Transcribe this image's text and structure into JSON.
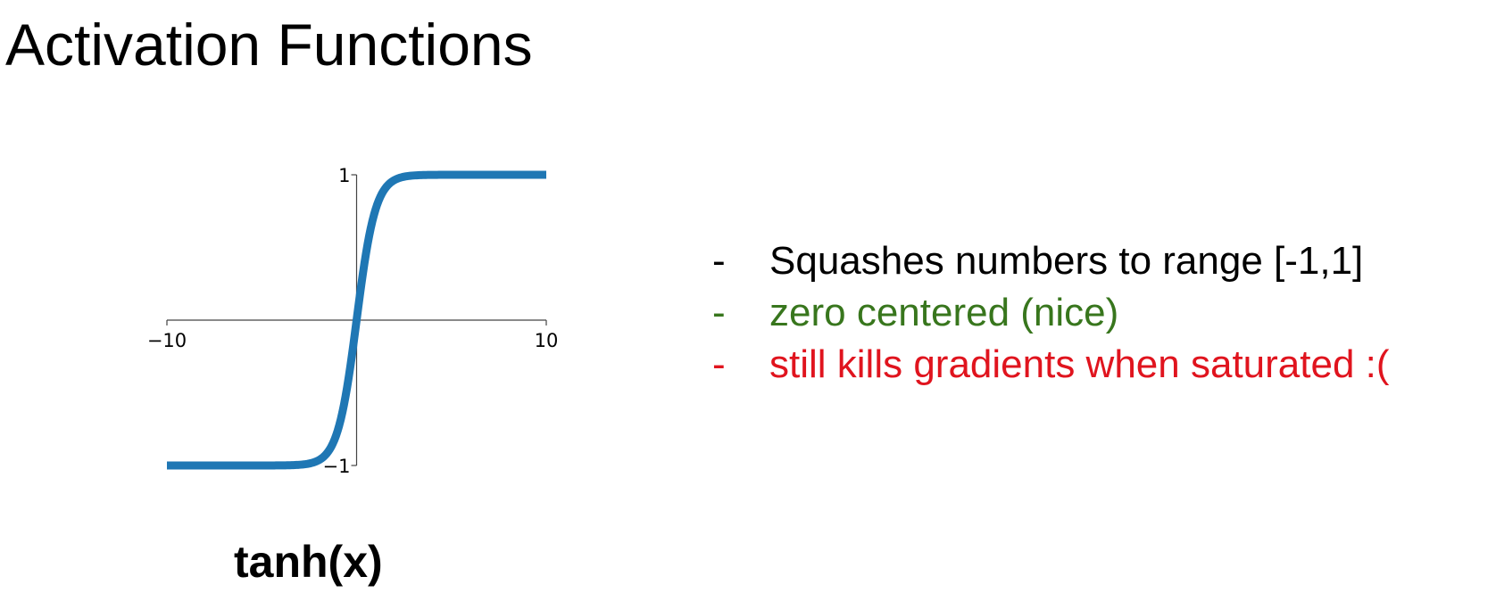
{
  "slide": {
    "title": "Activation Functions"
  },
  "function_label": "tanh(x)",
  "bullets": [
    {
      "dash": "-",
      "text": "Squashes numbers to range [-1,1]",
      "color": "#000000"
    },
    {
      "dash": "-",
      "text": "zero centered (nice)",
      "color": "#38761d"
    },
    {
      "dash": "-",
      "text": "still kills gradients when saturated :(",
      "color": "#e0141e"
    }
  ],
  "chart_data": {
    "type": "line",
    "function": "tanh",
    "xlim": [
      -10,
      10
    ],
    "ylim": [
      -1,
      1
    ],
    "x_ticks": [
      {
        "value": -10,
        "label": "−10"
      },
      {
        "value": 10,
        "label": "10"
      }
    ],
    "y_ticks": [
      {
        "value": 1,
        "label": "1"
      },
      {
        "value": -1,
        "label": "−1"
      }
    ],
    "grid": false,
    "line_color": "#1f77b4",
    "x": [
      -10,
      -8,
      -6,
      -5,
      -4,
      -3.5,
      -3,
      -2.5,
      -2,
      -1.5,
      -1,
      -0.5,
      0,
      0.5,
      1,
      1.5,
      2,
      2.5,
      3,
      3.5,
      4,
      5,
      6,
      8,
      10
    ],
    "y": [
      -1,
      -1,
      -1,
      -0.9999,
      -0.9993,
      -0.9982,
      -0.9951,
      -0.9866,
      -0.964,
      -0.9051,
      -0.7616,
      -0.4621,
      0,
      0.4621,
      0.7616,
      0.9051,
      0.964,
      0.9866,
      0.9951,
      0.9982,
      0.9993,
      0.9999,
      1,
      1,
      1
    ]
  }
}
